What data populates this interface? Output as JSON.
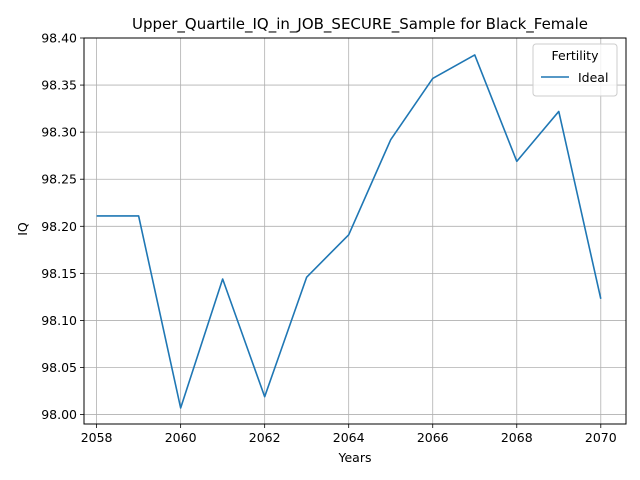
{
  "chart_data": {
    "type": "line",
    "title": "Upper_Quartile_IQ_in_JOB_SECURE_Sample for Black_Female",
    "xlabel": "Years",
    "ylabel": "IQ",
    "xlim": [
      2057.7,
      2070.6
    ],
    "ylim": [
      97.99,
      98.4
    ],
    "x_ticks": [
      2058,
      2060,
      2062,
      2064,
      2066,
      2068,
      2070
    ],
    "y_ticks": [
      98.0,
      98.05,
      98.1,
      98.15,
      98.2,
      98.25,
      98.3,
      98.35,
      98.4
    ],
    "y_tick_labels": [
      "98.00",
      "98.05",
      "98.10",
      "98.15",
      "98.20",
      "98.25",
      "98.30",
      "98.35",
      "98.40"
    ],
    "grid": true,
    "legend": {
      "title": "Fertility",
      "position": "top-right"
    },
    "series": [
      {
        "name": "Ideal",
        "color": "#1f77b4",
        "x": [
          2058,
          2059,
          2060,
          2061,
          2062,
          2063,
          2064,
          2065,
          2066,
          2067,
          2068,
          2069,
          2070
        ],
        "y": [
          98.211,
          98.211,
          98.007,
          98.144,
          98.019,
          98.146,
          98.191,
          98.292,
          98.357,
          98.382,
          98.269,
          98.322,
          98.123
        ]
      }
    ]
  }
}
